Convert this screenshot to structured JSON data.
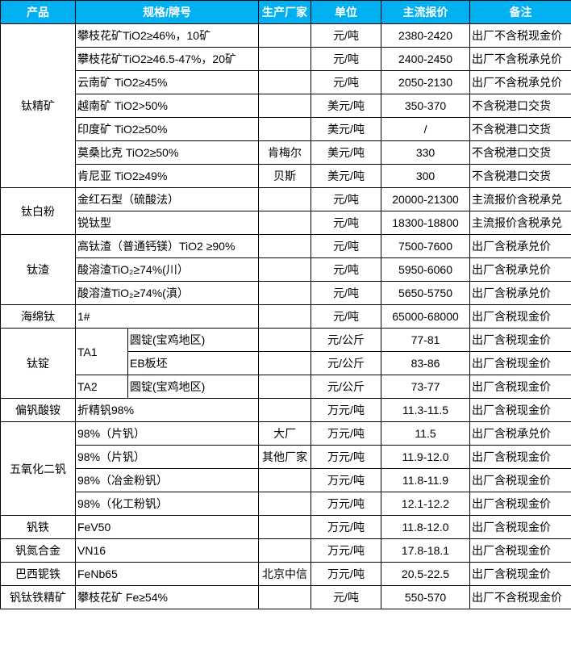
{
  "colors": {
    "header_bg": "#00B0F0",
    "header_text": "#FFFFFF"
  },
  "headers": {
    "product": "产品",
    "spec": "规格/牌号",
    "maker": "生产厂家",
    "unit": "单位",
    "price": "主流报价",
    "note": "备注"
  },
  "groups": [
    {
      "product": "钛精矿",
      "items": [
        {
          "spec": "攀枝花矿TiO2≥46%，10矿",
          "maker": "",
          "unit": "元/吨",
          "price": "2380-2420",
          "note": "出厂不含税现金价"
        },
        {
          "spec": "攀枝花矿TiO2≥46.5-47%，20矿",
          "maker": "",
          "unit": "元/吨",
          "price": "2400-2450",
          "note": "出厂不含税承兑价"
        },
        {
          "spec": "云南矿 TiO2≥45%",
          "maker": "",
          "unit": "元/吨",
          "price": "2050-2130",
          "note": "出厂不含税承兑价"
        },
        {
          "spec": "越南矿 TiO2>50%",
          "maker": "",
          "unit": "美元/吨",
          "price": "350-370",
          "note": "不含税港口交货"
        },
        {
          "spec": "印度矿 TiO2≥50%",
          "maker": "",
          "unit": "美元/吨",
          "price": "/",
          "note": "不含税港口交货"
        },
        {
          "spec": "莫桑比克 TiO2≥50%",
          "maker": "肯梅尔",
          "unit": "美元/吨",
          "price": "330",
          "note": "不含税港口交货"
        },
        {
          "spec": "肯尼亚 TiO2≥49%",
          "maker": "贝斯",
          "unit": "美元/吨",
          "price": "300",
          "note": "不含税港口交货"
        }
      ]
    },
    {
      "product": "钛白粉",
      "items": [
        {
          "spec": "金红石型（硫酸法）",
          "maker": "",
          "unit": "元/吨",
          "price": "20000-21300",
          "note": "主流报价含税承兑"
        },
        {
          "spec": "锐钛型",
          "maker": "",
          "unit": "元/吨",
          "price": "18300-18800",
          "note": "主流报价含税承兑"
        }
      ]
    },
    {
      "product": "钛渣",
      "items": [
        {
          "spec": "高钛渣（普通钙镁）TiO2 ≥90%",
          "maker": "",
          "unit": "元/吨",
          "price": "7500-7600",
          "note": "出厂含税承兑价"
        },
        {
          "spec": "酸溶渣TiO₂≥74%(川）",
          "maker": "",
          "unit": "元/吨",
          "price": "5950-6060",
          "note": "出厂含税承兑价"
        },
        {
          "spec": "酸溶渣TiO₂≥74%(滇）",
          "maker": "",
          "unit": "元/吨",
          "price": "5650-5750",
          "note": "出厂含税承兑价"
        }
      ]
    },
    {
      "product": "海绵钛",
      "items": [
        {
          "spec": "1#",
          "maker": "",
          "unit": "元/吨",
          "price": "65000-68000",
          "note": "出厂含税现金价"
        }
      ]
    },
    {
      "product": "钛锭",
      "items": [
        {
          "grade": "TA1",
          "spec": "圆锭(宝鸡地区)",
          "maker": "",
          "unit": "元/公斤",
          "price": "77-81",
          "note": "出厂含税现金价"
        },
        {
          "grade": "TA1",
          "spec": "EB板坯",
          "maker": "",
          "unit": "元/公斤",
          "price": "83-86",
          "note": "出厂含税现金价"
        },
        {
          "grade": "TA2",
          "spec": "圆锭(宝鸡地区)",
          "maker": "",
          "unit": "元/公斤",
          "price": "73-77",
          "note": "出厂含税现金价"
        }
      ]
    },
    {
      "product": "偏钒酸铵",
      "items": [
        {
          "spec": "折精钒98%",
          "maker": "",
          "unit": "万元/吨",
          "price": "11.3-11.5",
          "note": "出厂含税现金价"
        }
      ]
    },
    {
      "product": "五氧化二钒",
      "items": [
        {
          "spec": "98%（片钒）",
          "maker": "大厂",
          "unit": "万元/吨",
          "price": "11.5",
          "note": "出厂含税承兑价"
        },
        {
          "spec": "98%（片钒）",
          "maker": "其他厂家",
          "unit": "万元/吨",
          "price": "11.9-12.0",
          "note": "出厂含税现金价"
        },
        {
          "spec": "98%（冶金粉钒）",
          "maker": "",
          "unit": "万元/吨",
          "price": "11.8-11.9",
          "note": "出厂含税现金价"
        },
        {
          "spec": "98%（化工粉钒）",
          "maker": "",
          "unit": "万元/吨",
          "price": "12.1-12.2",
          "note": "出厂含税现金价"
        }
      ]
    },
    {
      "product": "钒铁",
      "items": [
        {
          "spec": "FeV50",
          "maker": "",
          "unit": "万元/吨",
          "price": "11.8-12.0",
          "note": "出厂含税现金价"
        }
      ]
    },
    {
      "product": "钒氮合金",
      "items": [
        {
          "spec": "VN16",
          "maker": "",
          "unit": "万元/吨",
          "price": "17.8-18.1",
          "note": "出厂含税现金价"
        }
      ]
    },
    {
      "product": "巴西铌铁",
      "items": [
        {
          "spec": "FeNb65",
          "maker": "北京中信",
          "unit": "万元/吨",
          "price": "20.5-22.5",
          "note": "出厂含税现金价"
        }
      ]
    },
    {
      "product": "钒钛铁精矿",
      "items": [
        {
          "spec": "攀枝花矿 Fe≥54%",
          "maker": "",
          "unit": "元/吨",
          "price": "550-570",
          "note": "出厂不含税现金价"
        }
      ]
    }
  ]
}
